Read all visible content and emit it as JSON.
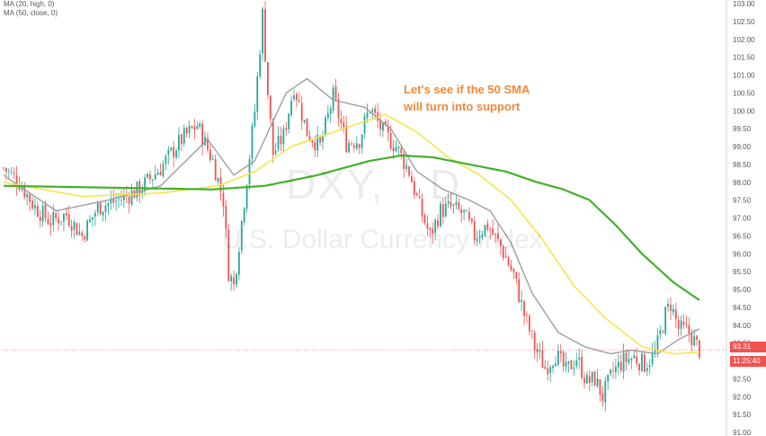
{
  "legend": {
    "ma20": "MA (20, high, 0)",
    "ma50": "MA (50, close, 0)"
  },
  "annotation": {
    "line1": "Let's see if the 50 SMA",
    "line2": "will turn into support"
  },
  "watermark": {
    "symbol": "DXY,",
    "timeframe": "D",
    "name": "U.S. Dollar Currency Index"
  },
  "current_price": "93.31",
  "countdown": "11:25:40",
  "colors": {
    "up": "#26a69a",
    "down": "#ef5350",
    "ma_fast": "#9e9e9e",
    "ma_mid": "#f5e342",
    "ma_slow": "#43b02a",
    "annotation": "#f0883b"
  },
  "chart_data": {
    "type": "candlestick",
    "y_axis_ticks": [
      "91.00",
      "91.50",
      "92.00",
      "92.50",
      "93.00",
      "93.50",
      "94.00",
      "94.50",
      "95.00",
      "95.50",
      "96.00",
      "96.50",
      "97.00",
      "97.50",
      "98.00",
      "98.50",
      "99.00",
      "99.50",
      "100.00",
      "100.50",
      "101.00",
      "101.50",
      "102.00",
      "102.50",
      "103.00"
    ],
    "ylim": [
      91.0,
      103.0
    ],
    "path_points_note": "price path control points (index, price)",
    "price_path": [
      [
        0,
        98.4
      ],
      [
        6,
        98.0
      ],
      [
        12,
        97.3
      ],
      [
        18,
        96.9
      ],
      [
        24,
        97.1
      ],
      [
        30,
        96.5
      ],
      [
        36,
        97.3
      ],
      [
        44,
        97.5
      ],
      [
        52,
        97.8
      ],
      [
        60,
        98.4
      ],
      [
        68,
        99.2
      ],
      [
        74,
        99.6
      ],
      [
        80,
        98.6
      ],
      [
        84,
        97.5
      ],
      [
        86,
        95.5
      ],
      [
        88,
        95.1
      ],
      [
        92,
        97.5
      ],
      [
        96,
        100.0
      ],
      [
        99,
        102.7
      ],
      [
        101,
        100.5
      ],
      [
        103,
        98.8
      ],
      [
        107,
        99.3
      ],
      [
        111,
        100.7
      ],
      [
        116,
        99.4
      ],
      [
        121,
        99.0
      ],
      [
        126,
        100.4
      ],
      [
        131,
        99.1
      ],
      [
        136,
        99.2
      ],
      [
        140,
        100.1
      ],
      [
        145,
        99.4
      ],
      [
        150,
        99.0
      ],
      [
        155,
        98.3
      ],
      [
        159,
        97.3
      ],
      [
        163,
        96.5
      ],
      [
        167,
        97.2
      ],
      [
        171,
        97.3
      ],
      [
        176,
        97.1
      ],
      [
        180,
        96.5
      ],
      [
        185,
        96.8
      ],
      [
        190,
        96.2
      ],
      [
        195,
        95.4
      ],
      [
        199,
        94.3
      ],
      [
        203,
        93.4
      ],
      [
        207,
        92.8
      ],
      [
        211,
        93.2
      ],
      [
        215,
        92.7
      ],
      [
        219,
        93.1
      ],
      [
        223,
        92.4
      ],
      [
        226,
        92.5
      ],
      [
        229,
        92.0
      ],
      [
        233,
        92.7
      ],
      [
        237,
        93.0
      ],
      [
        241,
        93.1
      ],
      [
        245,
        92.9
      ],
      [
        249,
        93.2
      ],
      [
        253,
        94.3
      ],
      [
        255,
        94.6
      ],
      [
        258,
        93.9
      ],
      [
        262,
        93.8
      ],
      [
        266,
        93.31
      ]
    ],
    "series": [
      {
        "name": "MA (20, high, 0)",
        "points": [
          [
            0,
            98.2
          ],
          [
            20,
            97.2
          ],
          [
            40,
            97.5
          ],
          [
            60,
            97.9
          ],
          [
            78,
            99.2
          ],
          [
            88,
            98.2
          ],
          [
            96,
            98.6
          ],
          [
            108,
            100.5
          ],
          [
            116,
            100.9
          ],
          [
            126,
            100.3
          ],
          [
            138,
            100.1
          ],
          [
            148,
            99.5
          ],
          [
            158,
            98.3
          ],
          [
            168,
            97.8
          ],
          [
            178,
            97.5
          ],
          [
            186,
            97.2
          ],
          [
            194,
            96.3
          ],
          [
            202,
            94.9
          ],
          [
            212,
            93.8
          ],
          [
            222,
            93.4
          ],
          [
            232,
            93.2
          ],
          [
            240,
            93.3
          ],
          [
            250,
            93.2
          ],
          [
            258,
            93.6
          ],
          [
            266,
            93.9
          ]
        ]
      },
      {
        "name": "MA (50, close, 0)",
        "points": [
          [
            0,
            98.0
          ],
          [
            30,
            97.6
          ],
          [
            60,
            97.7
          ],
          [
            82,
            97.9
          ],
          [
            96,
            98.3
          ],
          [
            110,
            99.0
          ],
          [
            130,
            99.5
          ],
          [
            146,
            99.9
          ],
          [
            158,
            99.4
          ],
          [
            170,
            98.7
          ],
          [
            182,
            98.2
          ],
          [
            194,
            97.5
          ],
          [
            206,
            96.4
          ],
          [
            218,
            95.1
          ],
          [
            230,
            94.2
          ],
          [
            244,
            93.4
          ],
          [
            256,
            93.2
          ],
          [
            266,
            93.25
          ]
        ]
      },
      {
        "name": "MA (100)",
        "points": [
          [
            0,
            97.9
          ],
          [
            40,
            97.85
          ],
          [
            80,
            97.8
          ],
          [
            100,
            97.9
          ],
          [
            120,
            98.2
          ],
          [
            140,
            98.6
          ],
          [
            152,
            98.75
          ],
          [
            164,
            98.7
          ],
          [
            178,
            98.5
          ],
          [
            192,
            98.3
          ],
          [
            204,
            98.0
          ],
          [
            214,
            97.8
          ],
          [
            224,
            97.5
          ],
          [
            234,
            96.8
          ],
          [
            244,
            96.0
          ],
          [
            256,
            95.2
          ],
          [
            266,
            94.7
          ]
        ]
      }
    ]
  }
}
